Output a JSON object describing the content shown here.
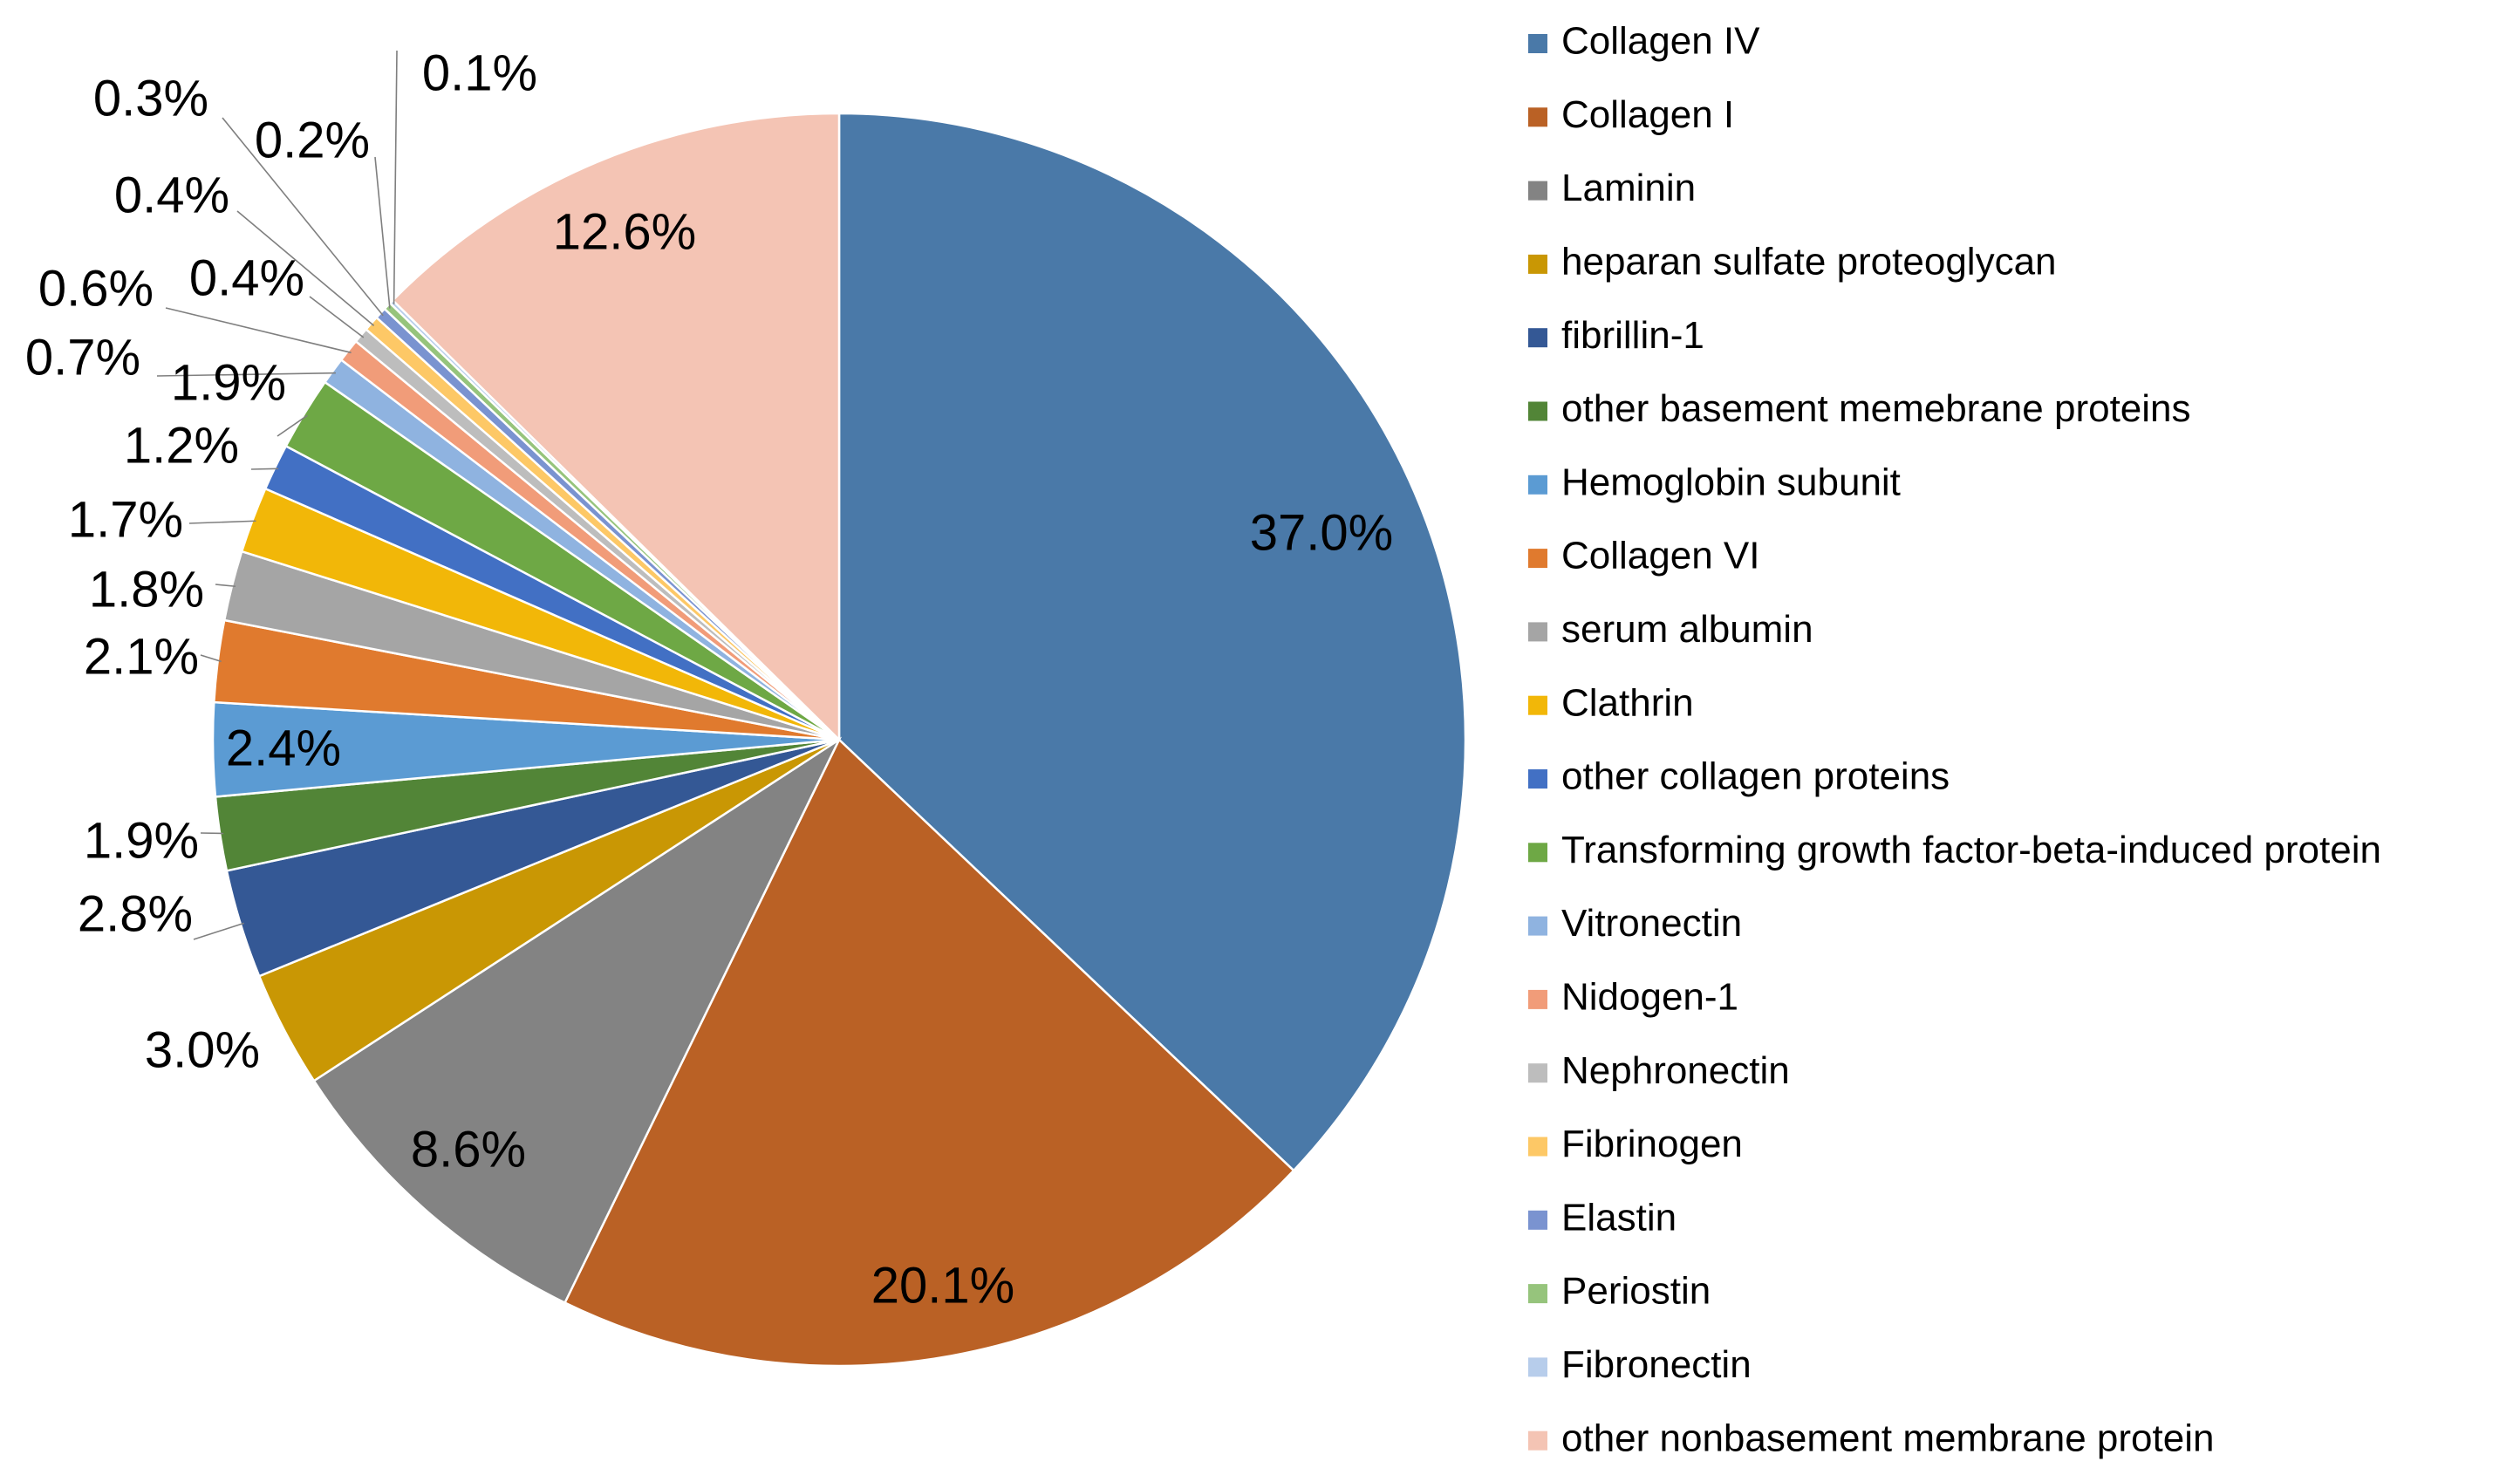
{
  "chart_data": {
    "type": "pie",
    "legend_position": "right",
    "slices": [
      {
        "name": "Collagen IV",
        "value": 37.0,
        "label": "37.0%",
        "color": "#4a79a8"
      },
      {
        "name": "Collagen I",
        "value": 20.1,
        "label": "20.1%",
        "color": "#ba6125"
      },
      {
        "name": "Laminin",
        "value": 8.6,
        "label": "8.6%",
        "color": "#838383"
      },
      {
        "name": "heparan sulfate proteoglycan",
        "value": 3.0,
        "label": "3.0%",
        "color": "#c99704"
      },
      {
        "name": "fibrillin-1",
        "value": 2.8,
        "label": "2.8%",
        "color": "#345895"
      },
      {
        "name": "other basement memebrane proteins",
        "value": 1.9,
        "label": "1.9%",
        "color": "#528537"
      },
      {
        "name": "Hemoglobin subunit",
        "value": 2.4,
        "label": "2.4%",
        "color": "#5b9bd3"
      },
      {
        "name": "Collagen VI",
        "value": 2.1,
        "label": "2.1%",
        "color": "#e07a2e"
      },
      {
        "name": "serum albumin",
        "value": 1.8,
        "label": "1.8%",
        "color": "#a5a5a5"
      },
      {
        "name": "Clathrin",
        "value": 1.7,
        "label": "1.7%",
        "color": "#f2b708"
      },
      {
        "name": "other collagen proteins",
        "value": 1.2,
        "label": "1.2%",
        "color": "#4270c4"
      },
      {
        "name": "Transforming growth factor-beta-induced protein",
        "value": 1.9,
        "label": "1.9%",
        "color": "#6ea845"
      },
      {
        "name": "Vitronectin",
        "value": 0.7,
        "label": "0.7%",
        "color": "#8fb3e0"
      },
      {
        "name": "Nidogen-1",
        "value": 0.6,
        "label": "0.6%",
        "color": "#f19c79"
      },
      {
        "name": "Nephronectin",
        "value": 0.4,
        "label": "0.4%",
        "color": "#bdbdbd"
      },
      {
        "name": "Fibrinogen",
        "value": 0.4,
        "label": "0.4%",
        "color": "#fdc866"
      },
      {
        "name": "Elastin",
        "value": 0.3,
        "label": "0.3%",
        "color": "#7a93d0"
      },
      {
        "name": "Periostin",
        "value": 0.2,
        "label": "0.2%",
        "color": "#96c47c"
      },
      {
        "name": "Fibronectin",
        "value": 0.1,
        "label": "0.1%",
        "color": "#b7cdeb"
      },
      {
        "name": "other nonbasement membrane protein",
        "value": 12.6,
        "label": "12.6%",
        "color": "#f4c4b4"
      }
    ]
  }
}
